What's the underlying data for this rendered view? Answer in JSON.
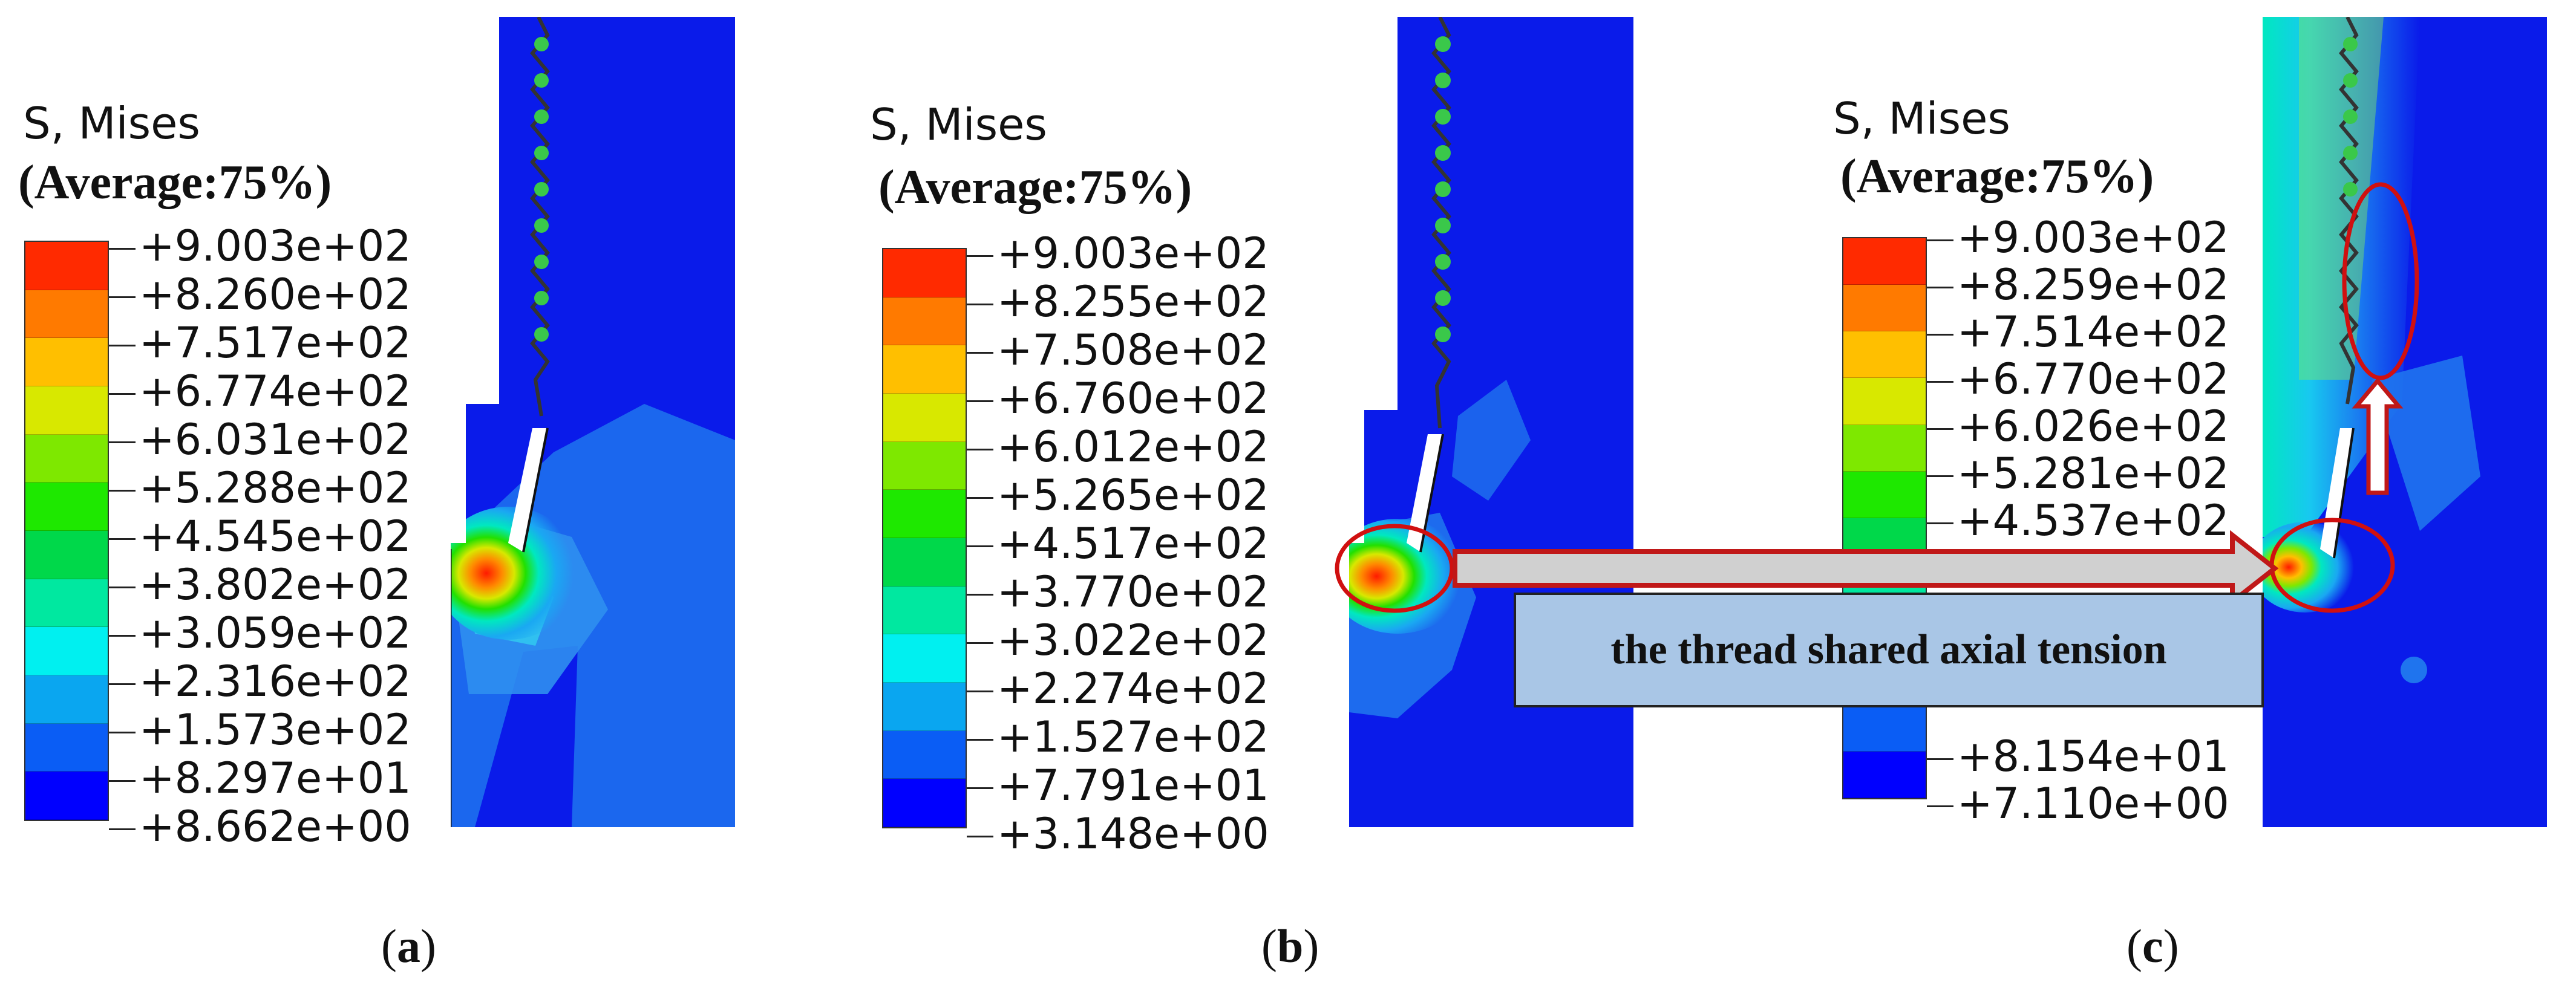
{
  "colors": {
    "scale": [
      "#0000ff",
      "#0a5df5",
      "#0aa6f0",
      "#00f0f0",
      "#00e8a0",
      "#00d84a",
      "#1ee800",
      "#7ee800",
      "#d8e800",
      "#ffbf00",
      "#ff7a00",
      "#ff2a00"
    ],
    "model_blue": "#0a1bea",
    "highlight_red": "#d01010",
    "annotation_fill": "#a9c6e6"
  },
  "panels": [
    {
      "legend_title": "S, Mises",
      "legend_subtitle": "(Average:75%)",
      "ticks": [
        "+9.003e+02",
        "+8.260e+02",
        "+7.517e+02",
        "+6.774e+02",
        "+6.031e+02",
        "+5.288e+02",
        "+4.545e+02",
        "+3.802e+02",
        "+3.059e+02",
        "+2.316e+02",
        "+1.573e+02",
        "+8.297e+01",
        "+8.662e+00"
      ],
      "caption_open": "(",
      "caption_letter": "a",
      "caption_close": ")"
    },
    {
      "legend_title": "S, Mises",
      "legend_subtitle": "(Average:75%)",
      "ticks": [
        "+9.003e+02",
        "+8.255e+02",
        "+7.508e+02",
        "+6.760e+02",
        "+6.012e+02",
        "+5.265e+02",
        "+4.517e+02",
        "+3.770e+02",
        "+3.022e+02",
        "+2.274e+02",
        "+1.527e+02",
        "+7.791e+01",
        "+3.148e+00"
      ],
      "caption_open": "(",
      "caption_letter": "b",
      "caption_close": ")"
    },
    {
      "legend_title": "S, Mises",
      "legend_subtitle": "(Average:75%)",
      "ticks": [
        "+9.003e+02",
        "+8.259e+02",
        "+7.514e+02",
        "+6.770e+02",
        "+6.026e+02",
        "+5.281e+02",
        "+4.537e+02",
        "",
        "",
        "",
        "",
        "+8.154e+01",
        "+7.110e+00"
      ],
      "caption_open": "(",
      "caption_letter": "c",
      "caption_close": ")"
    }
  ],
  "annotation": "the thread shared axial tension"
}
